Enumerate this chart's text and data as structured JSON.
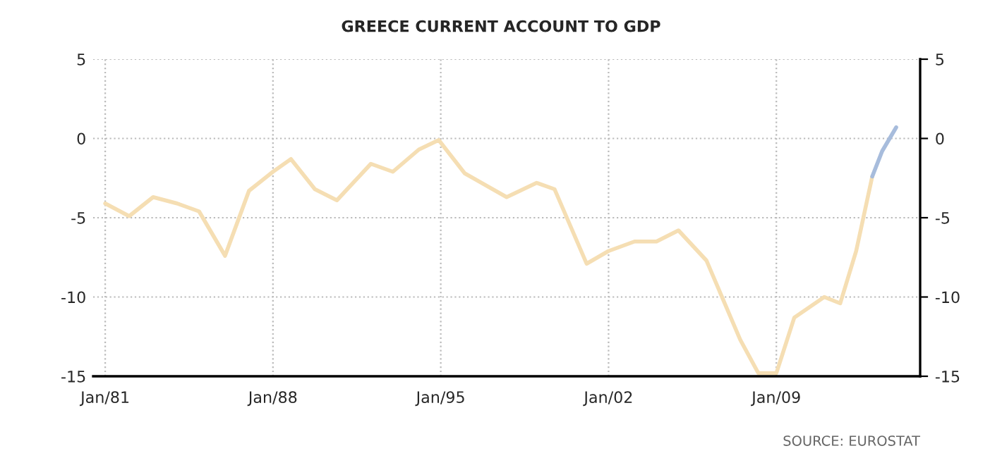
{
  "chart_data": {
    "type": "line",
    "title": "GREECE CURRENT ACCOUNT TO GDP",
    "x": [
      "1981-01",
      "1982-01",
      "1983-01",
      "1984-01",
      "1984-12",
      "1986-01",
      "1987-01",
      "1988-01",
      "1988-10",
      "1989-10",
      "1990-09",
      "1992-02",
      "1993-01",
      "1994-02",
      "1994-12",
      "1996-01",
      "1997-10",
      "1999-01",
      "1999-10",
      "2001-02",
      "2002-01",
      "2003-02",
      "2004-01",
      "2004-12",
      "2006-02",
      "2007-07",
      "2008-04",
      "2009-01",
      "2009-10",
      "2011-01",
      "2011-09",
      "2012-05",
      "2013-01"
    ],
    "series": [
      {
        "color": "#f5deb3",
        "values": [
          -4.1,
          -4.9,
          -3.7,
          -4.1,
          -4.6,
          -7.4,
          -3.3,
          -2.1,
          -1.3,
          -3.2,
          -3.9,
          -1.6,
          -2.1,
          -0.7,
          -0.1,
          -2.2,
          -3.7,
          -2.8,
          -3.2,
          -7.9,
          -7.1,
          -6.5,
          -6.5,
          -5.8,
          -7.7,
          -12.7,
          -14.8,
          -14.8,
          -11.3,
          -10.0,
          -10.4,
          -7.1,
          -2.4
        ]
      },
      {
        "color": "#a7bcdc",
        "x": [
          "2013-01",
          "2013-06",
          "2014-01"
        ],
        "values": [
          -2.4,
          -0.8,
          0.7
        ]
      }
    ],
    "xlim": [
      "1980-07",
      "2015-01"
    ],
    "xticks": [
      {
        "value": "1981-01",
        "label": "Jan/81"
      },
      {
        "value": "1988-01",
        "label": "Jan/88"
      },
      {
        "value": "1995-01",
        "label": "Jan/95"
      },
      {
        "value": "2002-01",
        "label": "Jan/02"
      },
      {
        "value": "2009-01",
        "label": "Jan/09"
      }
    ],
    "ylim": [
      -15,
      5
    ],
    "yticks": [
      -15,
      -10,
      -5,
      0,
      5
    ],
    "y2lim": [
      -15,
      5
    ],
    "y2ticks": [
      -15,
      -10,
      -5,
      0,
      5
    ],
    "grid": true,
    "line_style": "solid",
    "annotations": [
      "SOURCE: EUROSTAT"
    ]
  }
}
